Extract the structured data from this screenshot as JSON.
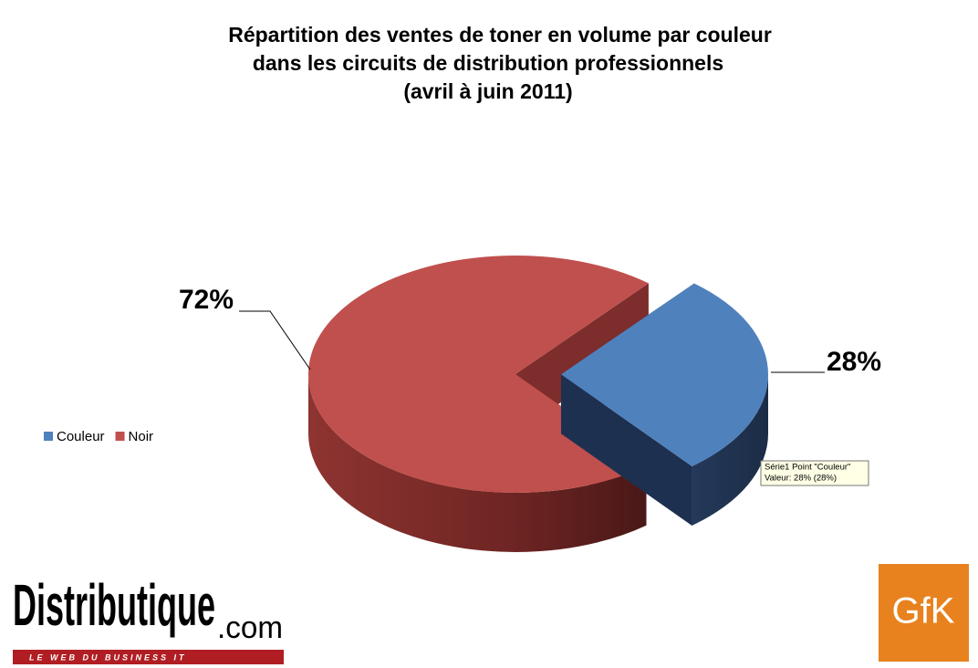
{
  "chart_data": {
    "type": "pie",
    "title": [
      "Répartition des ventes de toner en volume par couleur",
      "dans les circuits de distribution professionnels",
      "(avril à juin 2011)"
    ],
    "categories": [
      "Couleur",
      "Noir"
    ],
    "values": [
      28,
      72
    ],
    "value_labels": [
      "28%",
      "72%"
    ],
    "colors": [
      "#4f81bd",
      "#c0504d"
    ],
    "legend": "left",
    "tooltip": [
      "Série1 Point \"Couleur\"",
      "Valeur: 28% (28%)"
    ]
  },
  "logos": {
    "left": {
      "name": "Distributique",
      "suffix": ".com",
      "tagline": "LE WEB DU BUSINESS IT"
    },
    "right": "GfK"
  }
}
